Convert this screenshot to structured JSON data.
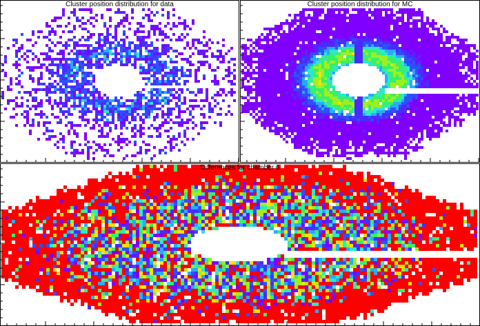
{
  "chart_data": [
    {
      "type": "heatmap",
      "title": "Cluster position distribution for data",
      "xlabel": "",
      "ylabel": "",
      "palette": "rainbow",
      "hole": true,
      "dead_strip": "right",
      "style": "sparse",
      "seed": 11
    },
    {
      "type": "heatmap",
      "title": "Cluster position distribution for MC",
      "xlabel": "",
      "ylabel": "",
      "palette": "rainbow",
      "hole": true,
      "dead_strip": "right",
      "style": "dense",
      "seed": 23
    },
    {
      "type": "heatmap",
      "title": "Differences for chamber 6",
      "xlabel": "",
      "ylabel": "",
      "palette": "rainbow",
      "hole": true,
      "dead_strip": "right",
      "style": "difference",
      "seed": 37
    }
  ],
  "colors": {
    "background": "#ffffff",
    "frame": "#000000",
    "palette": [
      "#7f00ff",
      "#4b2bff",
      "#2f50ff",
      "#2aa9ff",
      "#2ee8c8",
      "#36f06a",
      "#9cf020",
      "#ffe000",
      "#ff0000"
    ]
  }
}
